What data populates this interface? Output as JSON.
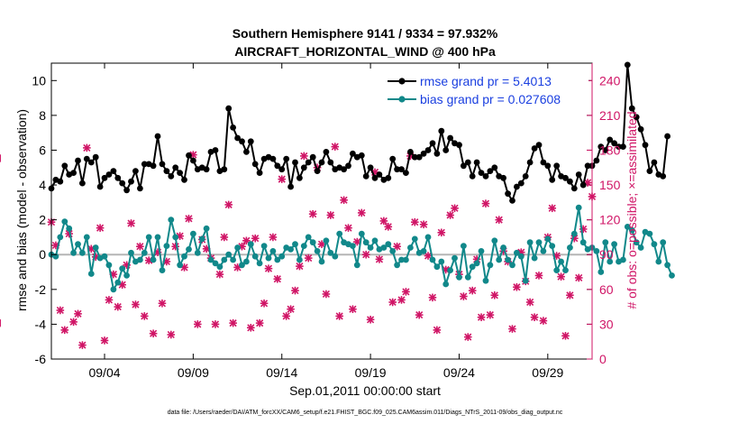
{
  "colors": {
    "rmse": "#000000",
    "bias": "#11888a",
    "obs": "#d01566",
    "zero_line": "#b5b5b5",
    "legend_text": "#1a3fe0"
  },
  "title_line1": "Southern Hemisphere 9141 / 9334 = 97.932%",
  "title_line2": "AIRCRAFT_HORIZONTAL_WIND @ 400 hPa",
  "footer": "data file: /Users/raeder/DAI/ATM_forcXX/CAM6_setup/f.e21.FHIST_BGC.f09_025.CAM6assim.011/Diags_NTrS_2011-09/obs_diag_output.nc",
  "chart_data": {
    "type": "line",
    "title": "Southern Hemisphere 9141 / 9334 = 97.932%",
    "subtitle": "AIRCRAFT_HORIZONTAL_WIND @ 400 hPa",
    "xlabel": "Sep.01,2011 00:00:00 start",
    "ylabel": "rmse and bias (model - observation)",
    "y2label": "# of obs: o=possible; ×=assimilated",
    "xlim": [
      1,
      31.5
    ],
    "ylim": [
      -6,
      11
    ],
    "y2lim": [
      0,
      255
    ],
    "x_ticks": [
      4,
      9,
      14,
      19,
      24,
      29
    ],
    "x_tick_labels": [
      "09/04",
      "09/09",
      "09/14",
      "09/19",
      "09/24",
      "09/29"
    ],
    "y_ticks": [
      -6,
      -4,
      -2,
      0,
      2,
      4,
      6,
      8,
      10
    ],
    "y2_ticks": [
      0,
      30,
      60,
      90,
      120,
      150,
      180,
      210,
      240
    ],
    "grid": false,
    "legend": {
      "position": "top-right",
      "entries": [
        "rmse grand pr = 5.4013",
        "bias grand pr = 0.027608"
      ]
    },
    "time_step_days": 0.25,
    "series": [
      {
        "name": "rmse grand pr = 5.4013",
        "axis": "left",
        "values": [
          3.8,
          4.3,
          4.2,
          5.1,
          4.6,
          4.7,
          5.4,
          4.1,
          5.5,
          5.3,
          5.6,
          3.9,
          4.4,
          4.6,
          4.8,
          4.4,
          4.1,
          3.7,
          4.2,
          4.8,
          3.8,
          5.2,
          5.2,
          5.1,
          6.8,
          5.2,
          4.8,
          4.5,
          5.0,
          4.7,
          4.3,
          5.7,
          5.4,
          4.9,
          5.0,
          4.9,
          5.9,
          6.0,
          4.8,
          4.9,
          8.4,
          7.3,
          6.7,
          6.5,
          5.9,
          6.5,
          5.2,
          4.7,
          5.5,
          5.6,
          5.5,
          5.1,
          4.9,
          5.5,
          3.9,
          5.3,
          4.4,
          5.0,
          5.3,
          5.6,
          4.8,
          5.3,
          5.9,
          5.3,
          4.9,
          5.0,
          4.9,
          5.1,
          5.8,
          5.6,
          5.7,
          4.5,
          5.0,
          4.4,
          4.6,
          4.3,
          4.4,
          5.5,
          4.9,
          4.9,
          4.7,
          5.9,
          5.6,
          5.6,
          5.8,
          6.0,
          6.4,
          5.8,
          7.1,
          6.0,
          6.7,
          6.4,
          6.3,
          5.1,
          5.3,
          4.5,
          5.3,
          4.7,
          4.5,
          4.8,
          5.0,
          4.5,
          4.4,
          3.5,
          3.1,
          3.9,
          4.1,
          4.5,
          5.3,
          6.1,
          6.3,
          5.3,
          5.1,
          4.3,
          5.1,
          4.5,
          4.4,
          4.2,
          3.8,
          4.6,
          4.0,
          5.1,
          5.1,
          5.4,
          6.2,
          6.0,
          6.6,
          6.4,
          6.2,
          6.2,
          10.9,
          8.4,
          7.9,
          7.2,
          6.3,
          4.8,
          5.3,
          4.6,
          4.5,
          6.8
        ]
      },
      {
        "name": "bias grand pr = 0.027608",
        "axis": "left",
        "values": [
          0.0,
          -0.1,
          1.0,
          1.9,
          1.5,
          0.1,
          0.6,
          0.1,
          1.0,
          -1.1,
          0.4,
          -0.2,
          -0.1,
          -0.6,
          -2.0,
          -1.6,
          -0.8,
          -1.2,
          0.1,
          -0.4,
          -0.3,
          0.1,
          1.0,
          -0.3,
          1.0,
          -0.9,
          0.5,
          2.0,
          1.0,
          -0.6,
          -0.1,
          0.3,
          1.2,
          0.1,
          0.9,
          1.5,
          -0.3,
          -0.5,
          -0.7,
          -0.3,
          0.0,
          -0.3,
          0.4,
          -0.6,
          -0.4,
          0.6,
          -0.1,
          -0.5,
          0.5,
          -0.2,
          0.2,
          -0.3,
          -0.1,
          0.4,
          0.3,
          0.6,
          -0.3,
          0.5,
          1.0,
          0.7,
          0.2,
          -0.4,
          0.8,
          0.1,
          -0.1,
          1.2,
          0.7,
          0.6,
          0.5,
          -0.6,
          1.2,
          0.7,
          0.4,
          0.8,
          0.3,
          0.4,
          0.6,
          0.2,
          -0.6,
          -0.3,
          -0.3,
          0.4,
          0.9,
          0.1,
          0.2,
          1.0,
          -0.3,
          -0.7,
          -0.4,
          -1.7,
          -0.9,
          -0.2,
          -1.3,
          0.5,
          -1.3,
          -0.7,
          -0.5,
          0.2,
          -1.5,
          -0.6,
          0.8,
          -0.3,
          0.4,
          -0.3,
          -0.6,
          0.1,
          -0.1,
          -1.5,
          0.7,
          -0.2,
          0.7,
          0.2,
          0.9,
          0.5,
          -0.9,
          -0.4,
          -0.9,
          0.4,
          1.2,
          2.7,
          0.7,
          0.3,
          0.4,
          0.2,
          -1.0,
          0.7,
          -0.4,
          0.6,
          -0.4,
          -0.3,
          1.6,
          1.4,
          0.7,
          0.4,
          1.3,
          1.2,
          0.6,
          -0.4,
          0.7,
          -0.6,
          -1.2
        ]
      }
    ],
    "obs_counts": {
      "axis": "right",
      "assimilated_x": [
        1.0,
        1.25,
        1.5,
        1.75,
        2.0,
        2.25,
        2.5,
        2.75,
        3.0,
        3.25,
        3.5,
        3.75,
        4.0,
        4.25,
        4.5,
        4.75,
        5.0,
        5.25,
        5.5,
        5.75,
        6.0,
        6.25,
        6.5,
        6.75,
        7.0,
        7.25,
        7.5,
        7.75,
        8.0,
        8.25,
        8.5,
        8.75,
        9.0,
        9.25,
        9.5,
        9.75,
        10.0,
        10.25,
        10.5,
        10.75,
        11.0,
        11.25,
        11.5,
        11.75,
        12.0,
        12.25,
        12.5,
        12.75,
        13.0,
        13.25,
        13.5,
        13.75,
        14.0,
        14.25,
        14.5,
        14.75,
        15.0,
        15.25,
        15.5,
        15.75,
        16.0,
        16.25,
        16.5,
        16.75,
        17.0,
        17.25,
        17.5,
        17.75,
        18.0,
        18.25,
        18.5,
        18.75,
        19.0,
        19.25,
        19.5,
        19.75,
        20.0,
        20.25,
        20.5,
        20.75,
        21.0,
        21.25,
        21.5,
        21.75,
        22.0,
        22.25,
        22.5,
        22.75,
        23.0,
        23.25,
        23.5,
        23.75,
        24.0,
        24.25,
        24.5,
        24.75,
        25.0,
        25.25,
        25.5,
        25.75,
        26.0,
        26.25,
        26.5,
        26.75,
        27.0,
        27.25,
        27.5,
        27.75,
        28.0,
        28.25,
        28.5,
        28.75,
        29.0,
        29.25,
        29.5,
        29.75,
        30.0,
        30.25,
        30.5,
        30.75,
        31.0,
        31.25,
        31.5
      ],
      "assimilated": [
        118,
        98,
        42,
        25,
        108,
        32,
        39,
        12,
        182,
        95,
        88,
        113,
        16,
        51,
        73,
        45,
        64,
        81,
        117,
        47,
        97,
        37,
        85,
        22,
        92,
        48,
        84,
        21,
        97,
        106,
        79,
        121,
        176,
        30,
        103,
        95,
        87,
        30,
        73,
        105,
        133,
        31,
        79,
        97,
        102,
        27,
        104,
        31,
        48,
        78,
        105,
        69,
        155,
        37,
        43,
        59,
        80,
        175,
        87,
        125,
        165,
        99,
        56,
        124,
        183,
        37,
        137,
        113,
        43,
        101,
        126,
        90,
        34,
        161,
        86,
        119,
        114,
        49,
        97,
        51,
        58,
        175,
        118,
        38,
        116,
        89,
        53,
        25,
        109,
        77,
        124,
        130,
        73,
        54,
        19,
        59,
        86,
        36,
        134,
        38,
        55,
        120,
        93,
        84,
        26,
        62,
        92,
        67,
        49,
        36,
        72,
        33,
        105,
        130,
        89,
        71,
        20,
        55,
        104,
        70,
        112,
        152,
        140,
        173,
        31
      ]
    }
  }
}
